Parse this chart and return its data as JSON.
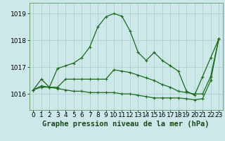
{
  "background_color": "#cce8e8",
  "grid_color": "#aacccc",
  "line_color": "#1a6b1a",
  "title": "Graphe pression niveau de la mer (hPa)",
  "title_fontsize": 7.5,
  "tick_fontsize": 6.5,
  "ylim": [
    1015.4,
    1019.4
  ],
  "yticks": [
    1016,
    1017,
    1018,
    1019
  ],
  "xlim": [
    -0.5,
    23.5
  ],
  "xticks": [
    0,
    1,
    2,
    3,
    4,
    5,
    6,
    7,
    8,
    9,
    10,
    11,
    12,
    13,
    14,
    15,
    16,
    17,
    18,
    19,
    20,
    21,
    22,
    23
  ],
  "series1": [
    1016.15,
    1016.55,
    1016.25,
    1016.95,
    1017.05,
    1017.15,
    1017.35,
    1017.75,
    1018.5,
    1018.88,
    1019.0,
    1018.9,
    1018.35,
    1017.55,
    1017.25,
    1017.55,
    1017.25,
    1017.05,
    1016.85,
    1016.1,
    1015.95,
    1016.65,
    1017.35,
    1018.05
  ],
  "series2": [
    1016.15,
    1016.3,
    1016.25,
    1016.25,
    1016.55,
    1016.55,
    1016.55,
    1016.55,
    1016.55,
    1016.55,
    1016.9,
    1016.85,
    1016.8,
    1016.7,
    1016.6,
    1016.5,
    1016.35,
    1016.25,
    1016.1,
    1016.05,
    1016.0,
    1016.0,
    1016.65,
    1018.05
  ],
  "series3": [
    1016.15,
    1016.25,
    1016.25,
    1016.2,
    1016.15,
    1016.1,
    1016.1,
    1016.05,
    1016.05,
    1016.05,
    1016.05,
    1016.0,
    1016.0,
    1015.95,
    1015.9,
    1015.85,
    1015.85,
    1015.85,
    1015.85,
    1015.82,
    1015.78,
    1015.82,
    1016.5,
    1018.05
  ]
}
